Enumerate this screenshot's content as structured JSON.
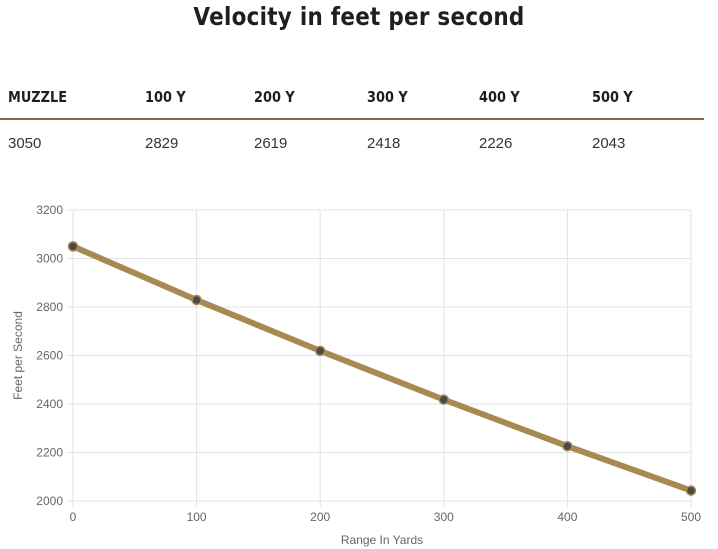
{
  "title": "Velocity in feet per second",
  "table": {
    "headers": [
      "MUZZLE",
      "100 Y",
      "200 Y",
      "300 Y",
      "400 Y",
      "500 Y"
    ],
    "values": [
      "3050",
      "2829",
      "2619",
      "2418",
      "2226",
      "2043"
    ]
  },
  "colors": {
    "line": "#a68a52",
    "point": "#4a4a4a",
    "rule": "#7d6c45",
    "grid": "#e3e3e3"
  },
  "chart_data": {
    "type": "line",
    "x": [
      0,
      100,
      200,
      300,
      400,
      500
    ],
    "series": [
      {
        "values": [
          3050,
          2829,
          2619,
          2418,
          2226,
          2043
        ]
      }
    ],
    "xlabel": "Range In Yards",
    "ylabel": "Feet per Second",
    "xlim": [
      0,
      500
    ],
    "ylim": [
      2000,
      3200
    ],
    "xticks": [
      "0",
      "100",
      "200",
      "300",
      "400",
      "500"
    ],
    "yticks": [
      "2000",
      "2200",
      "2400",
      "2600",
      "2800",
      "3000",
      "3200"
    ],
    "grid": true,
    "legend": "none"
  }
}
